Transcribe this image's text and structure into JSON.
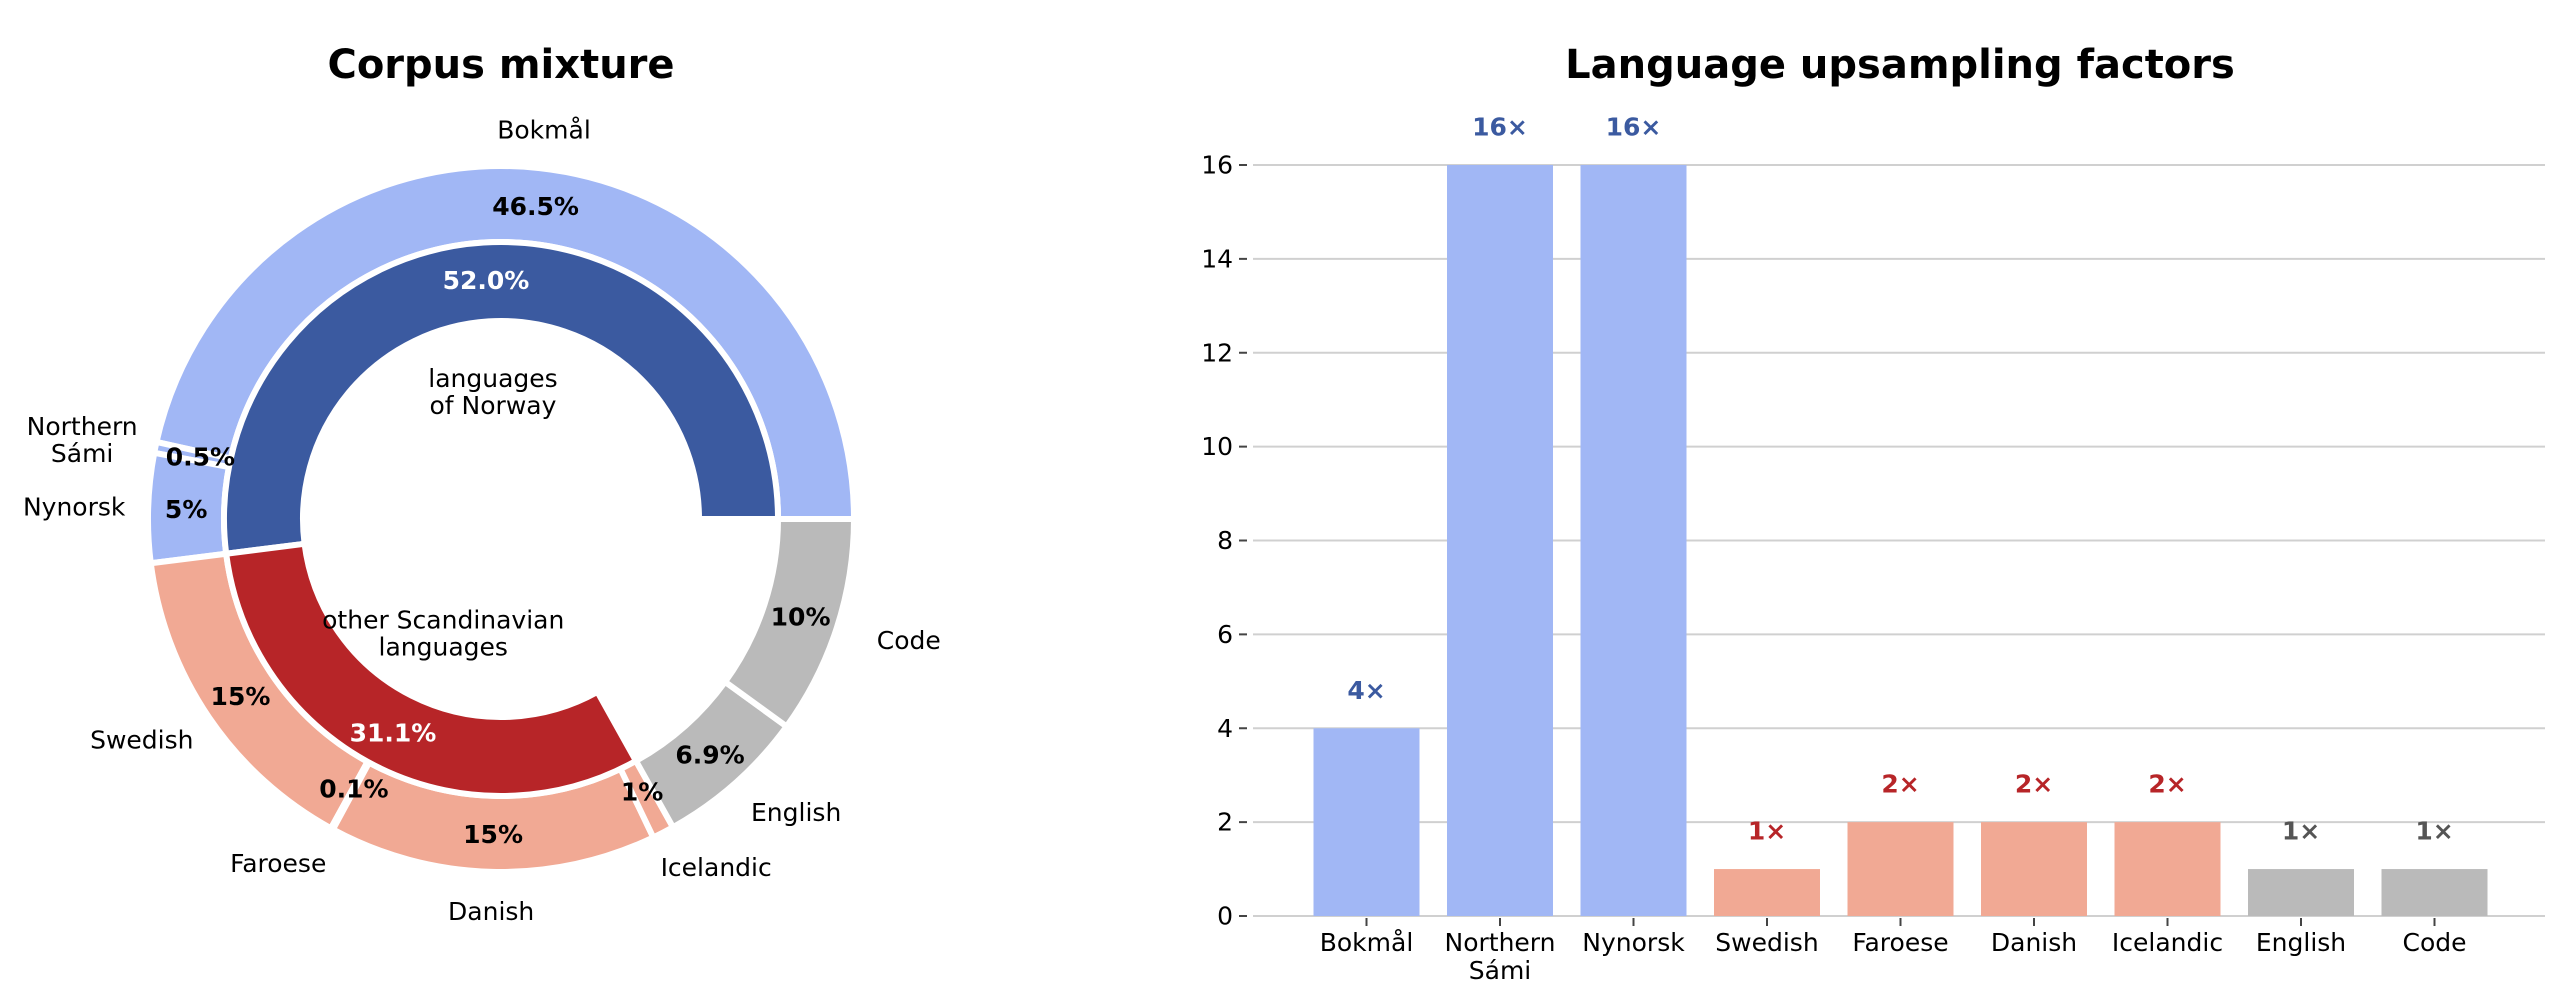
{
  "chart_data": [
    {
      "type": "pie",
      "title": "Corpus mixture",
      "inner_ring": [
        {
          "label": "languages\nof Norway",
          "value": 52.0,
          "value_label": "52.0%",
          "color": "#3b5aa0",
          "text_color": "#ffffff"
        },
        {
          "label": "other Scandinavian\nlanguages",
          "value": 31.1,
          "value_label": "31.1%",
          "color": "#b72528",
          "text_color": "#ffffff"
        }
      ],
      "outer_ring": [
        {
          "label": "Bokmål",
          "value": 46.5,
          "value_label": "46.5%",
          "color": "#a1b7f5"
        },
        {
          "label": "Northern\nSámi",
          "value": 0.5,
          "value_label": "0.5%",
          "color": "#a1b7f5"
        },
        {
          "label": "Nynorsk",
          "value": 5,
          "value_label": "5%",
          "color": "#a1b7f5"
        },
        {
          "label": "Swedish",
          "value": 15,
          "value_label": "15%",
          "color": "#f1a994"
        },
        {
          "label": "Faroese",
          "value": 0.1,
          "value_label": "0.1%",
          "color": "#f1a994"
        },
        {
          "label": "Danish",
          "value": 15,
          "value_label": "15%",
          "color": "#f1a994"
        },
        {
          "label": "Icelandic",
          "value": 1,
          "value_label": "1%",
          "color": "#f1a994"
        },
        {
          "label": "English",
          "value": 6.9,
          "value_label": "6.9%",
          "color": "#bababa"
        },
        {
          "label": "Code",
          "value": 10,
          "value_label": "10%",
          "color": "#bababa"
        }
      ]
    },
    {
      "type": "bar",
      "title": "Language upsampling factors",
      "categories": [
        "Bokmål",
        "Northern\nSámi",
        "Nynorsk",
        "Swedish",
        "Faroese",
        "Danish",
        "Icelandic",
        "English",
        "Code"
      ],
      "values": [
        4,
        16,
        16,
        1,
        2,
        2,
        2,
        1,
        1
      ],
      "value_labels": [
        "4×",
        "16×",
        "16×",
        "1×",
        "2×",
        "2×",
        "2×",
        "1×",
        "1×"
      ],
      "bar_colors": [
        "#a1b7f5",
        "#a1b7f5",
        "#a1b7f5",
        "#f1a994",
        "#f1a994",
        "#f1a994",
        "#f1a994",
        "#bababa",
        "#bababa"
      ],
      "label_colors": [
        "#3b5aa0",
        "#3b5aa0",
        "#3b5aa0",
        "#b72528",
        "#b72528",
        "#b72528",
        "#b72528",
        "#555555",
        "#555555"
      ],
      "yticks": [
        0,
        2,
        4,
        6,
        8,
        10,
        12,
        14,
        16
      ],
      "ylim": [
        0,
        16.8
      ],
      "grid": true
    }
  ]
}
